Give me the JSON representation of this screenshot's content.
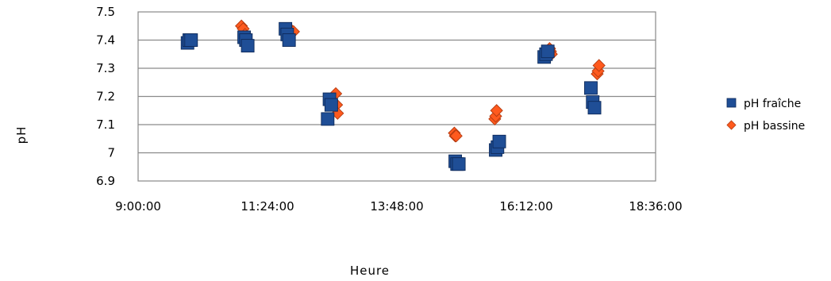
{
  "chart_data": {
    "type": "scatter",
    "xlabel": "Heure",
    "ylabel": "pH",
    "x_ticks": [
      "9:00:00",
      "11:24:00",
      "13:48:00",
      "16:12:00",
      "18:36:00"
    ],
    "y_ticks": [
      "6.9",
      "7",
      "7.1",
      "7.2",
      "7.3",
      "7.4",
      "7.5"
    ],
    "xlim": [
      "9:00:00",
      "18:36:00"
    ],
    "ylim": [
      6.9,
      7.5
    ],
    "grid": "horizontal",
    "legend_position": "right",
    "series": [
      {
        "name": "pH fraîche",
        "marker": "square",
        "color": "#1F4E96",
        "points": [
          {
            "x": "9:55:00",
            "y": 7.39
          },
          {
            "x": "9:57:00",
            "y": 7.4
          },
          {
            "x": "9:59:00",
            "y": 7.4
          },
          {
            "x": "10:58:00",
            "y": 7.41
          },
          {
            "x": "11:00:00",
            "y": 7.4
          },
          {
            "x": "11:02:00",
            "y": 7.38
          },
          {
            "x": "11:44:00",
            "y": 7.44
          },
          {
            "x": "11:46:00",
            "y": 7.42
          },
          {
            "x": "11:48:00",
            "y": 7.4
          },
          {
            "x": "12:33:00",
            "y": 7.19
          },
          {
            "x": "12:35:00",
            "y": 7.17
          },
          {
            "x": "12:31:00",
            "y": 7.12
          },
          {
            "x": "14:53:00",
            "y": 6.97
          },
          {
            "x": "14:55:00",
            "y": 6.96
          },
          {
            "x": "14:57:00",
            "y": 6.96
          },
          {
            "x": "15:38:00",
            "y": 7.01
          },
          {
            "x": "15:40:00",
            "y": 7.02
          },
          {
            "x": "15:42:00",
            "y": 7.04
          },
          {
            "x": "16:32:00",
            "y": 7.34
          },
          {
            "x": "16:34:00",
            "y": 7.35
          },
          {
            "x": "16:36:00",
            "y": 7.36
          },
          {
            "x": "17:24:00",
            "y": 7.23
          },
          {
            "x": "17:26:00",
            "y": 7.18
          },
          {
            "x": "17:28:00",
            "y": 7.16
          }
        ]
      },
      {
        "name": "pH bassine",
        "marker": "diamond",
        "color": "#FF5A1E",
        "points": [
          {
            "x": "10:55:00",
            "y": 7.45
          },
          {
            "x": "10:57:00",
            "y": 7.44
          },
          {
            "x": "10:59:00",
            "y": 7.42
          },
          {
            "x": "11:49:00",
            "y": 7.44
          },
          {
            "x": "11:51:00",
            "y": 7.43
          },
          {
            "x": "11:53:00",
            "y": 7.43
          },
          {
            "x": "12:40:00",
            "y": 7.21
          },
          {
            "x": "12:41:00",
            "y": 7.17
          },
          {
            "x": "12:42:00",
            "y": 7.14
          },
          {
            "x": "14:52:00",
            "y": 7.07
          },
          {
            "x": "14:53:00",
            "y": 7.06
          },
          {
            "x": "14:54:00",
            "y": 7.06
          },
          {
            "x": "15:37:00",
            "y": 7.12
          },
          {
            "x": "15:38:00",
            "y": 7.13
          },
          {
            "x": "15:39:00",
            "y": 7.15
          },
          {
            "x": "16:38:00",
            "y": 7.37
          },
          {
            "x": "16:39:00",
            "y": 7.36
          },
          {
            "x": "16:40:00",
            "y": 7.35
          },
          {
            "x": "17:31:00",
            "y": 7.28
          },
          {
            "x": "17:32:00",
            "y": 7.29
          },
          {
            "x": "17:33:00",
            "y": 7.31
          }
        ]
      }
    ]
  }
}
